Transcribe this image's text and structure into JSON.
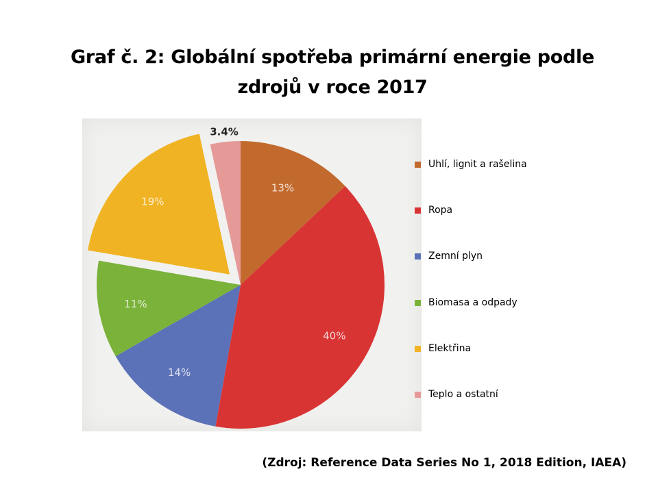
{
  "title": {
    "line1": "Graf č. 2: Globální spotřeba primární energie podle",
    "line2": "zdrojů v roce 2017"
  },
  "source": "(Zdroj: Reference Data Series No 1, 2018 Edition, IAEA)",
  "chart_data": {
    "type": "pie",
    "title": "Graf č. 2: Globální spotřeba primární energie podle zdrojů v roce 2017",
    "legend_position": "right",
    "exploded": "Elektřina",
    "start": "12 o'clock, clockwise",
    "slices": [
      {
        "label": "Uhlí, lignit a rašelina",
        "value": 13,
        "value_label": "13%",
        "color": "#c26a2e"
      },
      {
        "label": "Ropa",
        "value": 40,
        "value_label": "40%",
        "color": "#d93434"
      },
      {
        "label": "Zemní plyn",
        "value": 14,
        "value_label": "14%",
        "color": "#5b72b8"
      },
      {
        "label": "Biomasa a odpady",
        "value": 11,
        "value_label": "11%",
        "color": "#7bb23a"
      },
      {
        "label": "Elektřina",
        "value": 19,
        "value_label": "19%",
        "color": "#f0b324"
      },
      {
        "label": "Teplo a ostatní",
        "value": 3.4,
        "value_label": "3.4%",
        "color": "#e59a98"
      }
    ]
  }
}
